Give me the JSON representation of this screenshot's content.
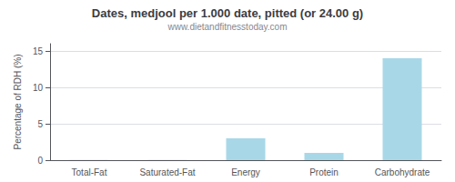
{
  "chart_data": {
    "type": "bar",
    "title": "Dates, medjool per 1.000 date, pitted (or 24.00 g)",
    "subtitle": "www.dietandfitnesstoday.com",
    "categories": [
      "Total-Fat",
      "Saturated-Fat",
      "Energy",
      "Protein",
      "Carbohydrate"
    ],
    "values": [
      0.03,
      0.02,
      3.0,
      1.0,
      14.0
    ],
    "color": "#a8d8e8",
    "ylabel": "Percentage of RDH (%)",
    "ylim": [
      0,
      16
    ],
    "yticks": [
      0,
      5,
      10,
      15
    ],
    "grid": true
  }
}
